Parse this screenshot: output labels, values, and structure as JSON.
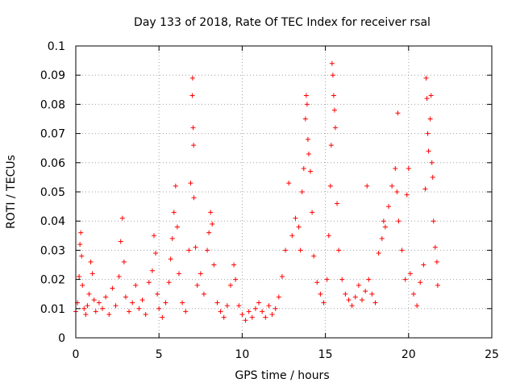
{
  "chart_data": {
    "type": "scatter",
    "title": "Day 133 of 2018, Rate Of TEC Index for receiver rsal",
    "xlabel": "GPS time / hours",
    "ylabel": "ROTI / TECUs",
    "xlim": [
      0,
      25
    ],
    "ylim": [
      0,
      0.1
    ],
    "x_ticks": [
      "0",
      "5",
      "10",
      "15",
      "20",
      "25"
    ],
    "y_ticks": [
      "0",
      "0.01",
      "0.02",
      "0.03",
      "0.04",
      "0.05",
      "0.06",
      "0.07",
      "0.08",
      "0.09",
      "0.1"
    ],
    "grid": true,
    "marker": "+",
    "colors": {
      "points": "#ff0000",
      "grid": "#a0a0a0",
      "axis": "#000000"
    },
    "series": [
      {
        "name": "ROTI",
        "points": [
          [
            0.0,
            0.009
          ],
          [
            0.1,
            0.012
          ],
          [
            0.2,
            0.021
          ],
          [
            0.25,
            0.032
          ],
          [
            0.3,
            0.036
          ],
          [
            0.35,
            0.028
          ],
          [
            0.4,
            0.018
          ],
          [
            0.5,
            0.01
          ],
          [
            0.6,
            0.008
          ],
          [
            0.7,
            0.011
          ],
          [
            0.8,
            0.015
          ],
          [
            0.9,
            0.026
          ],
          [
            1.0,
            0.022
          ],
          [
            1.1,
            0.013
          ],
          [
            1.2,
            0.009
          ],
          [
            1.4,
            0.012
          ],
          [
            1.6,
            0.01
          ],
          [
            1.8,
            0.014
          ],
          [
            2.0,
            0.008
          ],
          [
            2.2,
            0.017
          ],
          [
            2.4,
            0.011
          ],
          [
            2.6,
            0.021
          ],
          [
            2.7,
            0.033
          ],
          [
            2.8,
            0.041
          ],
          [
            2.9,
            0.026
          ],
          [
            3.0,
            0.014
          ],
          [
            3.2,
            0.009
          ],
          [
            3.4,
            0.012
          ],
          [
            3.6,
            0.018
          ],
          [
            3.8,
            0.01
          ],
          [
            4.0,
            0.013
          ],
          [
            4.2,
            0.008
          ],
          [
            4.4,
            0.019
          ],
          [
            4.6,
            0.023
          ],
          [
            4.7,
            0.035
          ],
          [
            4.8,
            0.029
          ],
          [
            4.9,
            0.015
          ],
          [
            5.0,
            0.01
          ],
          [
            5.2,
            0.007
          ],
          [
            5.4,
            0.012
          ],
          [
            5.6,
            0.019
          ],
          [
            5.7,
            0.027
          ],
          [
            5.8,
            0.034
          ],
          [
            5.9,
            0.043
          ],
          [
            6.0,
            0.052
          ],
          [
            6.1,
            0.038
          ],
          [
            6.2,
            0.022
          ],
          [
            6.4,
            0.012
          ],
          [
            6.6,
            0.009
          ],
          [
            6.8,
            0.03
          ],
          [
            6.9,
            0.053
          ],
          [
            7.0,
            0.083
          ],
          [
            7.02,
            0.089
          ],
          [
            7.05,
            0.072
          ],
          [
            7.08,
            0.066
          ],
          [
            7.1,
            0.048
          ],
          [
            7.2,
            0.031
          ],
          [
            7.3,
            0.018
          ],
          [
            7.5,
            0.022
          ],
          [
            7.7,
            0.015
          ],
          [
            7.9,
            0.03
          ],
          [
            8.0,
            0.036
          ],
          [
            8.1,
            0.043
          ],
          [
            8.2,
            0.039
          ],
          [
            8.3,
            0.025
          ],
          [
            8.5,
            0.012
          ],
          [
            8.7,
            0.009
          ],
          [
            8.9,
            0.007
          ],
          [
            9.1,
            0.011
          ],
          [
            9.3,
            0.018
          ],
          [
            9.5,
            0.025
          ],
          [
            9.6,
            0.02
          ],
          [
            9.8,
            0.011
          ],
          [
            10.0,
            0.008
          ],
          [
            10.2,
            0.006
          ],
          [
            10.4,
            0.009
          ],
          [
            10.6,
            0.007
          ],
          [
            10.8,
            0.01
          ],
          [
            11.0,
            0.012
          ],
          [
            11.2,
            0.009
          ],
          [
            11.4,
            0.007
          ],
          [
            11.6,
            0.011
          ],
          [
            11.8,
            0.008
          ],
          [
            12.0,
            0.01
          ],
          [
            12.2,
            0.014
          ],
          [
            12.4,
            0.021
          ],
          [
            12.6,
            0.03
          ],
          [
            12.8,
            0.053
          ],
          [
            13.0,
            0.035
          ],
          [
            13.2,
            0.041
          ],
          [
            13.4,
            0.038
          ],
          [
            13.5,
            0.03
          ],
          [
            13.6,
            0.05
          ],
          [
            13.7,
            0.058
          ],
          [
            13.8,
            0.075
          ],
          [
            13.85,
            0.083
          ],
          [
            13.9,
            0.08
          ],
          [
            13.95,
            0.068
          ],
          [
            14.0,
            0.063
          ],
          [
            14.1,
            0.057
          ],
          [
            14.2,
            0.043
          ],
          [
            14.3,
            0.028
          ],
          [
            14.5,
            0.019
          ],
          [
            14.7,
            0.015
          ],
          [
            14.9,
            0.012
          ],
          [
            15.1,
            0.02
          ],
          [
            15.2,
            0.035
          ],
          [
            15.3,
            0.052
          ],
          [
            15.35,
            0.066
          ],
          [
            15.4,
            0.094
          ],
          [
            15.45,
            0.09
          ],
          [
            15.5,
            0.083
          ],
          [
            15.55,
            0.078
          ],
          [
            15.6,
            0.072
          ],
          [
            15.7,
            0.046
          ],
          [
            15.8,
            0.03
          ],
          [
            16.0,
            0.02
          ],
          [
            16.2,
            0.015
          ],
          [
            16.4,
            0.013
          ],
          [
            16.6,
            0.011
          ],
          [
            16.8,
            0.014
          ],
          [
            17.0,
            0.018
          ],
          [
            17.2,
            0.013
          ],
          [
            17.4,
            0.016
          ],
          [
            17.5,
            0.052
          ],
          [
            17.6,
            0.02
          ],
          [
            17.8,
            0.015
          ],
          [
            18.0,
            0.012
          ],
          [
            18.2,
            0.029
          ],
          [
            18.4,
            0.034
          ],
          [
            18.5,
            0.04
          ],
          [
            18.6,
            0.038
          ],
          [
            18.8,
            0.045
          ],
          [
            19.0,
            0.052
          ],
          [
            19.2,
            0.058
          ],
          [
            19.3,
            0.05
          ],
          [
            19.35,
            0.077
          ],
          [
            19.4,
            0.04
          ],
          [
            19.6,
            0.03
          ],
          [
            19.8,
            0.02
          ],
          [
            19.9,
            0.049
          ],
          [
            20.0,
            0.058
          ],
          [
            20.1,
            0.022
          ],
          [
            20.3,
            0.015
          ],
          [
            20.5,
            0.011
          ],
          [
            20.7,
            0.019
          ],
          [
            20.9,
            0.025
          ],
          [
            21.0,
            0.051
          ],
          [
            21.05,
            0.089
          ],
          [
            21.1,
            0.082
          ],
          [
            21.15,
            0.07
          ],
          [
            21.2,
            0.064
          ],
          [
            21.3,
            0.075
          ],
          [
            21.35,
            0.083
          ],
          [
            21.4,
            0.06
          ],
          [
            21.45,
            0.055
          ],
          [
            21.5,
            0.04
          ],
          [
            21.6,
            0.031
          ],
          [
            21.7,
            0.026
          ],
          [
            21.75,
            0.018
          ]
        ]
      }
    ]
  }
}
